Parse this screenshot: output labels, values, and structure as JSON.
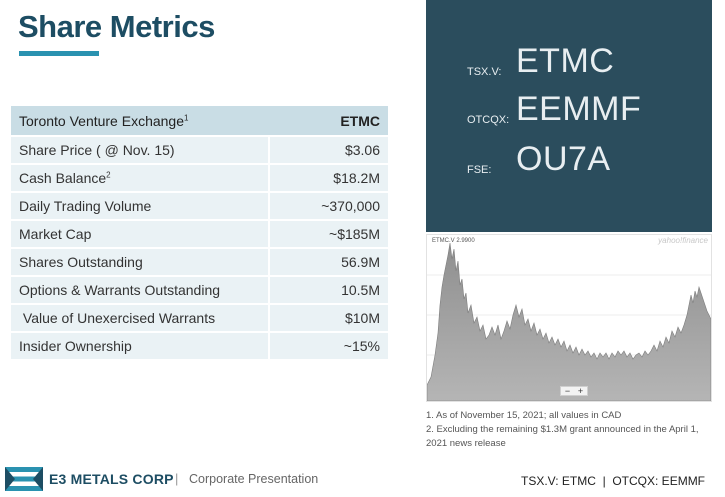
{
  "page": {
    "title": "Share Metrics",
    "accent_color": "#2a92b0",
    "title_color": "#1d4d63"
  },
  "table": {
    "header_label": "Toronto Venture Exchange",
    "header_label_sup": "1",
    "header_value": "ETMC",
    "rows": [
      {
        "label": "Share Price ( @ Nov. 15)",
        "sup": "",
        "value": "$3.06"
      },
      {
        "label": "Cash Balance",
        "sup": "2",
        "value": "$18.2M"
      },
      {
        "label": "Daily Trading Volume",
        "sup": "",
        "value": "~370,000"
      },
      {
        "label": "Market Cap",
        "sup": "",
        "value": "~$185M"
      },
      {
        "label": "Shares Outstanding",
        "sup": "",
        "value": "56.9M"
      },
      {
        "label": "Options & Warrants Outstanding",
        "sup": "",
        "value": "10.5M"
      },
      {
        "label": " Value of Unexercised Warrants",
        "sup": "",
        "value": "$10M"
      },
      {
        "label": "Insider Ownership",
        "sup": "",
        "value": "~15%"
      }
    ]
  },
  "tickers": {
    "panel_color": "#2b4d5d",
    "items": [
      {
        "exchange": "TSX.V:",
        "symbol": "ETMC"
      },
      {
        "exchange": "OTCQX:",
        "symbol": "EEMMF"
      },
      {
        "exchange": "FSE:",
        "symbol": "OU7A"
      }
    ]
  },
  "stock_chart": {
    "ticker_label": "ETMC.V",
    "ticker_value": "2.9900",
    "brand": "yahoo!finance",
    "zoom_minus": "−",
    "zoom_plus": "+",
    "fill_color": "#9c9c9c"
  },
  "notes": [
    "1. As of November 15, 2021; all values in CAD",
    "2. Excluding the remaining $1.3M grant announced in the April 1, 2021 news release"
  ],
  "footer": {
    "company": "E3 METALS CORP",
    "separator": "|",
    "subtitle": "Corporate Presentation",
    "tickers": "TSX.V: ETMC  |  OTCQX: EEMMF"
  }
}
